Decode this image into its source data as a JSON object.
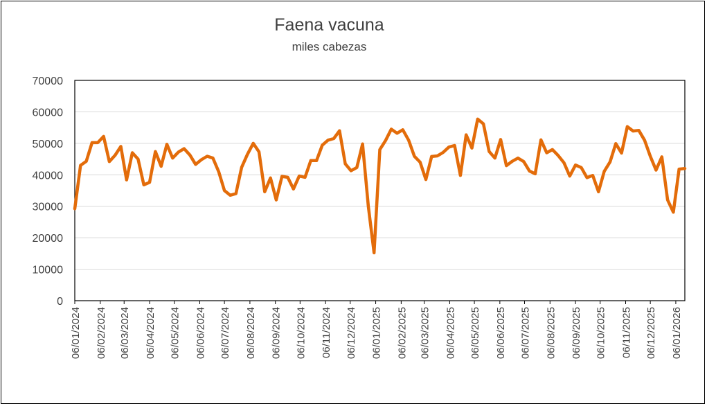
{
  "chart_data": {
    "type": "line",
    "title": "Faena vacuna",
    "subtitle": "miles cabezas",
    "xlabel": "",
    "ylabel": "",
    "ylim": [
      0,
      70000
    ],
    "yticks": [
      "0",
      "10000",
      "20000",
      "30000",
      "40000",
      "50000",
      "60000",
      "70000"
    ],
    "xticks": [
      "06/01/2024",
      "06/02/2024",
      "06/03/2024",
      "06/04/2024",
      "06/05/2024",
      "06/06/2024",
      "06/07/2024",
      "06/08/2024",
      "06/09/2024",
      "06/10/2024",
      "06/11/2024",
      "06/12/2024",
      "06/01/2025",
      "06/02/2025",
      "06/03/2025",
      "06/04/2025",
      "06/05/2025",
      "06/06/2025",
      "06/07/2025",
      "06/08/2025",
      "06/09/2025",
      "06/10/2025",
      "06/11/2025",
      "06/12/2025",
      "06/01/2026"
    ],
    "grid": true,
    "legend": "none",
    "color": "#E36C0A",
    "series": [
      {
        "x": [
          "2024-01-06",
          "2024-01-13",
          "2024-01-20",
          "2024-01-27",
          "2024-02-03",
          "2024-02-10",
          "2024-02-17",
          "2024-02-24",
          "2024-03-02",
          "2024-03-09",
          "2024-03-16",
          "2024-03-23",
          "2024-03-30",
          "2024-04-06",
          "2024-04-13",
          "2024-04-20",
          "2024-04-27",
          "2024-05-04",
          "2024-05-11",
          "2024-05-18",
          "2024-05-25",
          "2024-06-01",
          "2024-06-08",
          "2024-06-15",
          "2024-06-22",
          "2024-06-29",
          "2024-07-06",
          "2024-07-13",
          "2024-07-20",
          "2024-07-27",
          "2024-08-03",
          "2024-08-10",
          "2024-08-17",
          "2024-08-24",
          "2024-08-31",
          "2024-09-07",
          "2024-09-14",
          "2024-09-21",
          "2024-09-28",
          "2024-10-05",
          "2024-10-12",
          "2024-10-19",
          "2024-10-26",
          "2024-11-02",
          "2024-11-09",
          "2024-11-16",
          "2024-11-23",
          "2024-11-30",
          "2024-12-07",
          "2024-12-14",
          "2024-12-21",
          "2024-12-28",
          "2025-01-04",
          "2025-01-11",
          "2025-01-18",
          "2025-01-25",
          "2025-02-01",
          "2025-02-08",
          "2025-02-15",
          "2025-02-22",
          "2025-03-01",
          "2025-03-08",
          "2025-03-15",
          "2025-03-22",
          "2025-03-29",
          "2025-04-05",
          "2025-04-12",
          "2025-04-19",
          "2025-04-26",
          "2025-05-03",
          "2025-05-10",
          "2025-05-17",
          "2025-05-24",
          "2025-05-31",
          "2025-06-07",
          "2025-06-14",
          "2025-06-21",
          "2025-06-28",
          "2025-07-05",
          "2025-07-12",
          "2025-07-19",
          "2025-07-26",
          "2025-08-02",
          "2025-08-09",
          "2025-08-16",
          "2025-08-23",
          "2025-08-30",
          "2025-09-06",
          "2025-09-13",
          "2025-09-20",
          "2025-09-27",
          "2025-10-04",
          "2025-10-11",
          "2025-10-18",
          "2025-10-25",
          "2025-11-01",
          "2025-11-08",
          "2025-11-15",
          "2025-11-22",
          "2025-11-29",
          "2025-12-06",
          "2025-12-13",
          "2025-12-20",
          "2025-12-27",
          "2026-01-03",
          "2026-01-10",
          "2026-01-17"
        ],
        "values": [
          29200,
          43000,
          44300,
          50200,
          50200,
          52200,
          44200,
          46200,
          49000,
          38400,
          47000,
          45000,
          36800,
          37600,
          47400,
          42700,
          49700,
          45300,
          47200,
          48300,
          46300,
          43300,
          44800,
          45900,
          45300,
          41000,
          35000,
          33500,
          34000,
          42400,
          46500,
          50000,
          47300,
          34600,
          39000,
          32000,
          39500,
          39200,
          35500,
          39600,
          39200,
          44500,
          44500,
          49400,
          51000,
          51500,
          54000,
          43500,
          41300,
          42300,
          49800,
          30000,
          15200,
          48000,
          50900,
          54500,
          53200,
          54300,
          51000,
          45900,
          44000,
          38500,
          45800,
          46000,
          47100,
          48800,
          49300,
          39800,
          52700,
          48500,
          57700,
          56200,
          47400,
          45300,
          51200,
          42900,
          44300,
          45300,
          44200,
          41200,
          40300,
          51100,
          47000,
          48000,
          46100,
          43800,
          39600,
          43100,
          42300,
          39100,
          39800,
          34600,
          41100,
          44100,
          49900,
          46900,
          55300,
          53900,
          54100,
          51000,
          45900,
          41500,
          45700,
          32000,
          28100,
          41800,
          42000
        ]
      }
    ]
  }
}
